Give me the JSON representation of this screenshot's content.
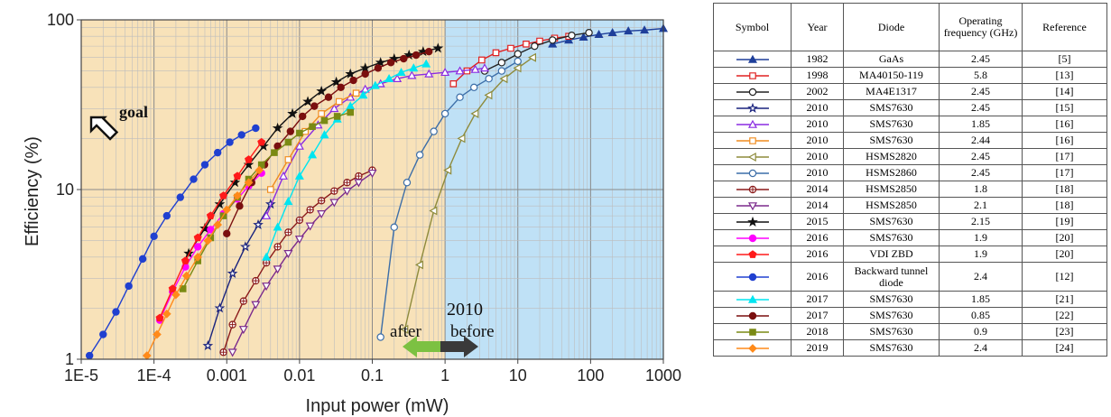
{
  "chart_data": {
    "type": "scatter",
    "xlabel": "Input power (mW)",
    "ylabel": "Efficiency (%)",
    "xscale": "log",
    "yscale": "log",
    "xlim": [
      1e-05,
      1000
    ],
    "ylim": [
      1,
      100
    ],
    "x_tick_labels": [
      "1E-5",
      "1E-4",
      "0.001",
      "0.01",
      "0.1",
      "1",
      "10",
      "100",
      "1000"
    ],
    "y_tick_labels": [
      "1",
      "10",
      "100"
    ],
    "grid": true,
    "annotations": {
      "goal": "goal",
      "year": "2010",
      "after": "after",
      "before": "before"
    },
    "regions": {
      "after_color": "#f8e2b9",
      "before_color": "#bfe1f6",
      "split_x": 1
    },
    "series": [
      {
        "name": "GaAs",
        "color": "#1f3f9a",
        "marker": "triangle",
        "fill": true,
        "x": [
          30,
          50,
          80,
          130,
          200,
          330,
          550,
          1000
        ],
        "y": [
          72,
          76,
          79,
          82,
          84,
          86,
          87,
          89
        ]
      },
      {
        "name": "MA40150-119",
        "color": "#e02020",
        "marker": "square",
        "fill": false,
        "x": [
          1.3,
          2.0,
          3.2,
          5.0,
          8.0,
          13,
          20,
          32,
          50
        ],
        "y": [
          42,
          50,
          58,
          64,
          68,
          72,
          75,
          78,
          80
        ]
      },
      {
        "name": "MA4E1317",
        "color": "#222222",
        "marker": "circle",
        "fill": false,
        "x": [
          3.5,
          6.0,
          10,
          17,
          30,
          55,
          95
        ],
        "y": [
          50,
          56,
          63,
          70,
          76,
          81,
          84
        ]
      },
      {
        "name": "SMS7630 (2010, 2.45 GHz)",
        "color": "#1a237e",
        "marker": "star",
        "fill": false,
        "x": [
          0.00055,
          0.0008,
          0.0012,
          0.0018,
          0.0027,
          0.004
        ],
        "y": [
          1.2,
          2.0,
          3.2,
          4.6,
          6.2,
          8.2
        ]
      },
      {
        "name": "SMS7630 (2010, 1.85 GHz)",
        "color": "#8a2be2",
        "marker": "triangle",
        "fill": false,
        "x": [
          0.0035,
          0.006,
          0.01,
          0.018,
          0.03,
          0.05,
          0.08,
          0.13,
          0.22,
          0.35,
          0.6,
          1.0,
          1.6,
          2.6,
          3.5
        ],
        "y": [
          7,
          12,
          18,
          24,
          30,
          35,
          39,
          42,
          45,
          47,
          48,
          49,
          50,
          51,
          52
        ]
      },
      {
        "name": "SMS7630 (2010, 2.44 GHz)",
        "color": "#f08c1e",
        "marker": "square",
        "fill": false,
        "x": [
          0.004,
          0.007,
          0.012,
          0.02,
          0.035,
          0.06
        ],
        "y": [
          10,
          15,
          22,
          28,
          33,
          37
        ]
      },
      {
        "name": "HSMS2820",
        "color": "#8e8b3c",
        "marker": "triangle-left",
        "fill": false,
        "x": [
          0.28,
          0.45,
          0.7,
          1.1,
          1.7,
          2.6,
          4.0,
          6.5,
          10,
          16
        ],
        "y": [
          1.5,
          3.6,
          7.5,
          13,
          20,
          28,
          36,
          45,
          52,
          60
        ]
      },
      {
        "name": "HSMS2860",
        "color": "#3c6ea8",
        "marker": "circle",
        "fill": false,
        "x": [
          0.13,
          0.2,
          0.3,
          0.45,
          0.7,
          1.0,
          1.6,
          2.5,
          4.0,
          6.0,
          10
        ],
        "y": [
          1.35,
          6,
          11,
          16,
          22,
          28,
          35,
          40,
          45,
          50,
          57
        ]
      },
      {
        "name": "HSMS2850 (2014, 1.8 GHz)",
        "color": "#8b1a1a",
        "marker": "circle-plus",
        "fill": false,
        "x": [
          0.0009,
          0.0012,
          0.0017,
          0.0025,
          0.0035,
          0.005,
          0.007,
          0.01,
          0.014,
          0.02,
          0.03,
          0.045,
          0.065,
          0.1
        ],
        "y": [
          1.1,
          1.6,
          2.2,
          2.9,
          3.7,
          4.6,
          5.6,
          6.6,
          7.6,
          8.6,
          9.8,
          11,
          12,
          13
        ]
      },
      {
        "name": "HSMS2850 (2014, 2.1 GHz)",
        "color": "#7b2a8c",
        "marker": "triangle-down",
        "fill": false,
        "x": [
          0.0012,
          0.0017,
          0.0025,
          0.0035,
          0.005,
          0.007,
          0.01,
          0.014,
          0.02,
          0.03,
          0.045,
          0.065,
          0.1
        ],
        "y": [
          1.1,
          1.5,
          2.1,
          2.7,
          3.4,
          4.2,
          5.1,
          6.1,
          7.2,
          8.4,
          9.8,
          11,
          12.5
        ]
      },
      {
        "name": "SMS7630 (2015, 2.15 GHz)",
        "color": "#111111",
        "marker": "star",
        "fill": true,
        "x": [
          0.0003,
          0.0005,
          0.0008,
          0.0013,
          0.002,
          0.0032,
          0.005,
          0.008,
          0.013,
          0.02,
          0.032,
          0.05,
          0.08,
          0.13,
          0.2,
          0.32,
          0.5,
          0.8
        ],
        "y": [
          4.2,
          5.9,
          8.2,
          11,
          14,
          18,
          23,
          28,
          33,
          38,
          43,
          48,
          52,
          56,
          59,
          62,
          65,
          68
        ]
      },
      {
        "name": "SMS7630 (2016, 1.9 GHz)",
        "color": "#ff00ff",
        "marker": "circle",
        "fill": true,
        "x": [
          0.00012,
          0.00018,
          0.00027,
          0.0004,
          0.0006,
          0.0009,
          0.0014,
          0.002,
          0.003
        ],
        "y": [
          1.7,
          2.5,
          3.5,
          4.6,
          5.8,
          7.2,
          8.8,
          10.5,
          12.5
        ]
      },
      {
        "name": "VDI ZBD",
        "color": "#ff1a1a",
        "marker": "pentagon",
        "fill": true,
        "x": [
          0.00012,
          0.00018,
          0.00027,
          0.0004,
          0.0006,
          0.0009,
          0.0014,
          0.002,
          0.003
        ],
        "y": [
          1.75,
          2.6,
          3.8,
          5.2,
          7,
          9.2,
          12,
          15,
          19
        ]
      },
      {
        "name": "Backward tunnel diode",
        "color": "#2040d0",
        "marker": "circle",
        "fill": true,
        "x": [
          1.3e-05,
          2e-05,
          3e-05,
          4.5e-05,
          7e-05,
          0.0001,
          0.00015,
          0.00023,
          0.00035,
          0.0005,
          0.00075,
          0.0011,
          0.0016,
          0.0025
        ],
        "y": [
          1.05,
          1.4,
          1.9,
          2.7,
          3.9,
          5.3,
          7.0,
          9.0,
          11.5,
          14,
          16.5,
          19,
          21,
          23
        ]
      },
      {
        "name": "SMS7630 (2017, 1.85 GHz)",
        "color": "#00e5f0",
        "marker": "triangle",
        "fill": true,
        "x": [
          0.0035,
          0.005,
          0.007,
          0.01,
          0.015,
          0.022,
          0.033,
          0.05,
          0.075,
          0.11,
          0.17,
          0.25,
          0.37,
          0.55
        ],
        "y": [
          4,
          6,
          8.5,
          12,
          16,
          21,
          26,
          31,
          36,
          41,
          45,
          49,
          52,
          55
        ]
      },
      {
        "name": "SMS7630 (2017, 0.85 GHz)",
        "color": "#7a0f0f",
        "marker": "circle",
        "fill": true,
        "x": [
          0.001,
          0.0015,
          0.0022,
          0.0033,
          0.005,
          0.0075,
          0.011,
          0.016,
          0.025,
          0.037,
          0.055,
          0.08,
          0.12,
          0.18,
          0.27,
          0.4,
          0.6
        ],
        "y": [
          5.5,
          8,
          11,
          14,
          18,
          22,
          27,
          31,
          35,
          40,
          44,
          48,
          52,
          56,
          59,
          62,
          65
        ]
      },
      {
        "name": "SMS7630 (2018, 0.9 GHz)",
        "color": "#7a8a14",
        "marker": "square",
        "fill": true,
        "x": [
          0.00025,
          0.0004,
          0.0006,
          0.0009,
          0.0014,
          0.002,
          0.003,
          0.0045,
          0.007,
          0.01,
          0.015,
          0.022,
          0.033,
          0.05
        ],
        "y": [
          2.6,
          3.8,
          5.2,
          7,
          9,
          11.5,
          14,
          16.5,
          19,
          21.5,
          23.5,
          25.5,
          27,
          28.5
        ]
      },
      {
        "name": "SMS7630 (2019, 2.4 GHz)",
        "color": "#ff8a1a",
        "marker": "diamond",
        "fill": true,
        "x": [
          8e-05,
          0.00011,
          0.00015,
          0.0002,
          0.00028,
          0.0004,
          0.00055,
          0.00075,
          0.001,
          0.0014,
          0.002,
          0.0028
        ],
        "y": [
          1.05,
          1.4,
          1.85,
          2.4,
          3.1,
          4,
          5,
          6.2,
          7.6,
          9.2,
          11,
          13
        ]
      }
    ]
  },
  "table": {
    "headers": [
      "Symbol",
      "Year",
      "Diode",
      "Operating frequency (GHz)",
      "Reference"
    ],
    "rows": [
      {
        "color": "#1f3f9a",
        "marker": "triangle",
        "fill": true,
        "year": "1982",
        "diode": "GaAs",
        "freq": "2.45",
        "ref": "[5]"
      },
      {
        "color": "#e02020",
        "marker": "square",
        "fill": false,
        "year": "1998",
        "diode": "MA40150-119",
        "freq": "5.8",
        "ref": "[13]"
      },
      {
        "color": "#222222",
        "marker": "circle",
        "fill": false,
        "year": "2002",
        "diode": "MA4E1317",
        "freq": "2.45",
        "ref": "[14]"
      },
      {
        "color": "#1a237e",
        "marker": "star",
        "fill": false,
        "year": "2010",
        "diode": "SMS7630",
        "freq": "2.45",
        "ref": "[15]"
      },
      {
        "color": "#8a2be2",
        "marker": "triangle",
        "fill": false,
        "year": "2010",
        "diode": "SMS7630",
        "freq": "1.85",
        "ref": "[16]"
      },
      {
        "color": "#f08c1e",
        "marker": "square",
        "fill": false,
        "year": "2010",
        "diode": "SMS7630",
        "freq": "2.44",
        "ref": "[16]"
      },
      {
        "color": "#8e8b3c",
        "marker": "triangle-left",
        "fill": false,
        "year": "2010",
        "diode": "HSMS2820",
        "freq": "2.45",
        "ref": "[17]"
      },
      {
        "color": "#3c6ea8",
        "marker": "circle",
        "fill": false,
        "year": "2010",
        "diode": "HSMS2860",
        "freq": "2.45",
        "ref": "[17]"
      },
      {
        "color": "#8b1a1a",
        "marker": "circle-plus",
        "fill": false,
        "year": "2014",
        "diode": "HSMS2850",
        "freq": "1.8",
        "ref": "[18]"
      },
      {
        "color": "#7b2a8c",
        "marker": "triangle-down",
        "fill": false,
        "year": "2014",
        "diode": "HSMS2850",
        "freq": "2.1",
        "ref": "[18]"
      },
      {
        "color": "#111111",
        "marker": "star",
        "fill": true,
        "year": "2015",
        "diode": "SMS7630",
        "freq": "2.15",
        "ref": "[19]"
      },
      {
        "color": "#ff00ff",
        "marker": "circle",
        "fill": true,
        "year": "2016",
        "diode": "SMS7630",
        "freq": "1.9",
        "ref": "[20]"
      },
      {
        "color": "#ff1a1a",
        "marker": "pentagon",
        "fill": true,
        "year": "2016",
        "diode": "VDI ZBD",
        "freq": "1.9",
        "ref": "[20]"
      },
      {
        "color": "#2040d0",
        "marker": "circle",
        "fill": true,
        "year": "2016",
        "diode": "Backward tunnel diode",
        "freq": "2.4",
        "ref": "[12]",
        "tall": true
      },
      {
        "color": "#00e5f0",
        "marker": "triangle",
        "fill": true,
        "year": "2017",
        "diode": "SMS7630",
        "freq": "1.85",
        "ref": "[21]"
      },
      {
        "color": "#7a0f0f",
        "marker": "circle",
        "fill": true,
        "year": "2017",
        "diode": "SMS7630",
        "freq": "0.85",
        "ref": "[22]"
      },
      {
        "color": "#7a8a14",
        "marker": "square",
        "fill": true,
        "year": "2018",
        "diode": "SMS7630",
        "freq": "0.9",
        "ref": "[23]"
      },
      {
        "color": "#ff8a1a",
        "marker": "diamond",
        "fill": true,
        "year": "2019",
        "diode": "SMS7630",
        "freq": "2.4",
        "ref": "[24]"
      }
    ]
  }
}
